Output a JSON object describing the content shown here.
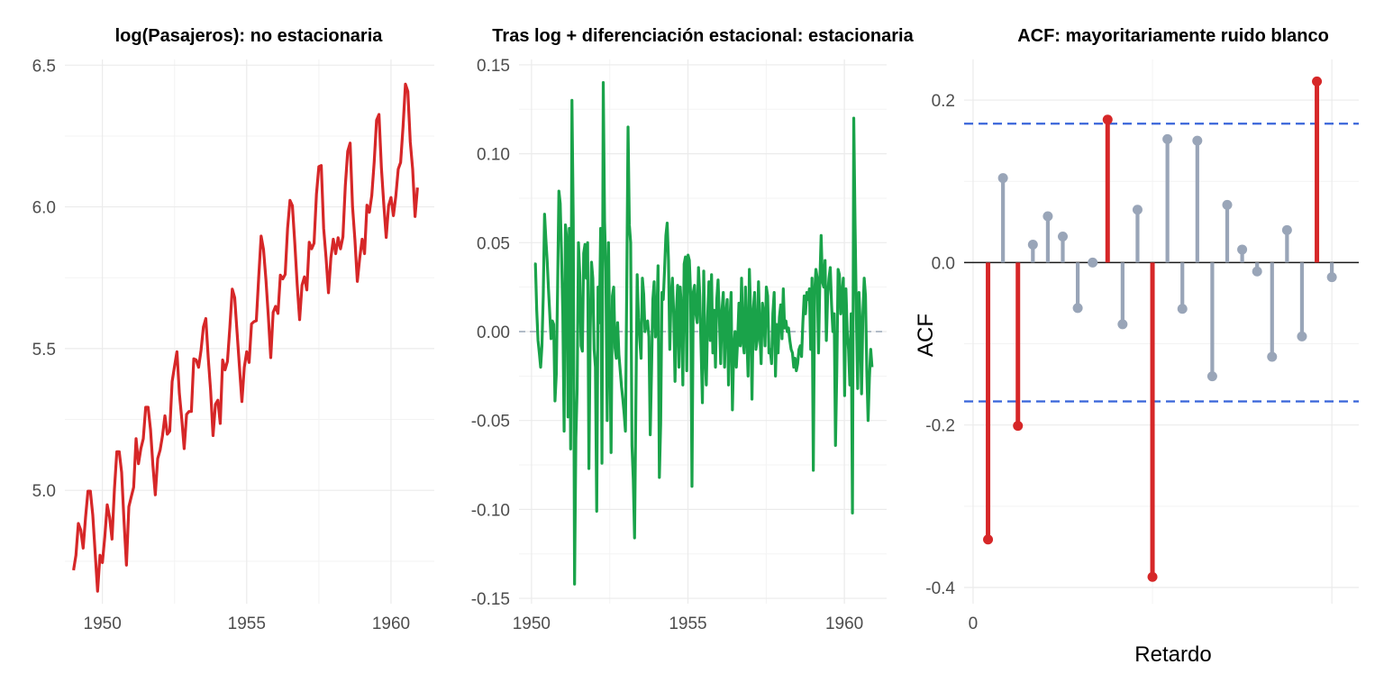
{
  "chart_data": [
    {
      "type": "line",
      "title": "log(Pasajeros): no estacionaria",
      "xlabel": "",
      "ylabel": "",
      "xlim": [
        1948.7,
        1961.5
      ],
      "ylim": [
        4.6,
        6.52
      ],
      "x_ticks": [
        1950,
        1955,
        1960
      ],
      "x_tick_labels": [
        "1950",
        "1955",
        "1960"
      ],
      "y_ticks": [
        5.0,
        5.5,
        6.0,
        6.5
      ],
      "y_tick_labels": [
        "5.0",
        "5.5",
        "6.0",
        "6.5"
      ],
      "grid": true,
      "series": [
        {
          "color": "#d62728",
          "start": 1949.0,
          "step": 0.0833333,
          "values": [
            4.718,
            4.771,
            4.883,
            4.86,
            4.796,
            4.905,
            4.997,
            4.997,
            4.913,
            4.779,
            4.644,
            4.771,
            4.745,
            4.836,
            4.949,
            4.905,
            4.828,
            5.004,
            5.136,
            5.136,
            5.063,
            4.89,
            4.736,
            4.942,
            4.977,
            5.011,
            5.182,
            5.094,
            5.147,
            5.182,
            5.293,
            5.293,
            5.215,
            5.088,
            4.984,
            5.112,
            5.142,
            5.193,
            5.263,
            5.198,
            5.209,
            5.384,
            5.438,
            5.489,
            5.342,
            5.252,
            5.147,
            5.268,
            5.278,
            5.278,
            5.464,
            5.46,
            5.434,
            5.493,
            5.576,
            5.606,
            5.468,
            5.352,
            5.193,
            5.303,
            5.318,
            5.236,
            5.46,
            5.425,
            5.455,
            5.576,
            5.71,
            5.68,
            5.557,
            5.434,
            5.313,
            5.434,
            5.489,
            5.451,
            5.587,
            5.595,
            5.598,
            5.753,
            5.897,
            5.849,
            5.743,
            5.613,
            5.468,
            5.628,
            5.649,
            5.624,
            5.759,
            5.746,
            5.762,
            5.924,
            6.023,
            6.004,
            5.872,
            5.724,
            5.602,
            5.724,
            5.753,
            5.707,
            5.875,
            5.852,
            5.872,
            6.045,
            6.142,
            6.146,
            5.924,
            5.82,
            5.697,
            5.82,
            5.886,
            5.835,
            5.891,
            5.852,
            5.894,
            6.075,
            6.196,
            6.225,
            6.001,
            5.883,
            5.737,
            5.82,
            5.886,
            5.835,
            6.006,
            5.981,
            6.04,
            6.157,
            6.306,
            6.326,
            6.138,
            6.009,
            5.892,
            6.004,
            6.033,
            5.969,
            6.038,
            6.133,
            6.157,
            6.282,
            6.433,
            6.407,
            6.23,
            6.133,
            5.966,
            6.068
          ]
        }
      ]
    },
    {
      "type": "line",
      "title": "Tras log + diferenciación estacional: estacionaria",
      "xlabel": "",
      "ylabel": "",
      "xlim": [
        1949.6,
        1961.35
      ],
      "ylim": [
        -0.153,
        0.153
      ],
      "x_ticks": [
        1950,
        1955,
        1960
      ],
      "x_tick_labels": [
        "1950",
        "1955",
        "1960"
      ],
      "y_ticks": [
        -0.15,
        -0.1,
        -0.05,
        0.0,
        0.05,
        0.1,
        0.15
      ],
      "y_tick_labels": [
        "-0.15",
        "-0.10",
        "-0.05",
        "0.00",
        "0.05",
        "0.10",
        "0.15"
      ],
      "grid": true,
      "reference_line": 0.0,
      "series": [
        {
          "color": "#1aa34a",
          "start": 1950.083,
          "step": 0.0417,
          "values": [
            0.038,
            0.038,
            0.012,
            -0.005,
            -0.012,
            -0.02,
            -0.008,
            0.02,
            0.066,
            0.052,
            0.04,
            0.024,
            0.01,
            -0.004,
            0.006,
            0.004,
            -0.039,
            -0.024,
            0.024,
            0.079,
            0.072,
            0.044,
            0.01,
            -0.056,
            0.06,
            0.052,
            -0.048,
            0.058,
            -0.066,
            0.13,
            0.062,
            -0.142,
            -0.06,
            -0.032,
            0.05,
            0.032,
            -0.008,
            -0.011,
            0.044,
            0.049,
            0.03,
            0.05,
            -0.077,
            0.0,
            0.039,
            0.03,
            -0.01,
            -0.02,
            -0.101,
            0.025,
            0.005,
            0.058,
            -0.074,
            0.14,
            0.062,
            0.034,
            -0.05,
            0.05,
            -0.006,
            -0.068,
            0.02,
            0.025,
            -0.009,
            -0.015,
            0.005,
            -0.013,
            -0.022,
            -0.031,
            -0.038,
            -0.046,
            -0.056,
            0.025,
            0.115,
            0.06,
            0.05,
            -0.064,
            -0.083,
            -0.116,
            -0.04,
            0.032,
            0.008,
            -0.005,
            -0.015,
            0.03,
            0.021,
            0.0,
            0.005,
            0.006,
            -0.003,
            -0.058,
            -0.022,
            0.018,
            0.028,
            -0.003,
            0.005,
            0.037,
            -0.082,
            -0.052,
            0.022,
            0.018,
            0.035,
            0.054,
            0.061,
            0.04,
            -0.01,
            0.02,
            0.03,
            0.01,
            -0.028,
            0.01,
            0.026,
            -0.02,
            0.025,
            0.012,
            -0.03,
            0.038,
            0.042,
            -0.022,
            0.043,
            0.04,
            0.02,
            -0.087,
            0.022,
            0.026,
            0.01,
            0.005,
            0.036,
            0.02,
            -0.01,
            -0.04,
            0.034,
            -0.012,
            -0.03,
            0.008,
            0.028,
            -0.005,
            0.032,
            -0.012,
            0.012,
            -0.02,
            0.018,
            0.029,
            0.008,
            -0.018,
            0.012,
            0.022,
            -0.02,
            0.01,
            0.018,
            -0.03,
            0.005,
            0.022,
            -0.044,
            -0.01,
            0.0,
            -0.02,
            -0.005,
            0.016,
            -0.008,
            0.03,
            -0.005,
            -0.012,
            0.025,
            -0.002,
            -0.025,
            0.035,
            0.01,
            -0.038,
            0.012,
            0.022,
            -0.01,
            -0.005,
            0.028,
            0.0,
            -0.018,
            0.016,
            0.01,
            -0.008,
            0.025,
            0.02,
            -0.012,
            -0.01,
            -0.018,
            0.01,
            0.022,
            -0.025,
            0.004,
            -0.012,
            0.008,
            0.015,
            -0.004,
            0.024,
            0.002,
            0.006,
            0.0,
            0.002,
            -0.005,
            -0.01,
            -0.012,
            -0.02,
            -0.015,
            -0.022,
            -0.018,
            -0.01,
            -0.008,
            -0.014,
            0.005,
            0.02,
            0.01,
            0.022,
            0.018,
            0.024,
            -0.01,
            0.03,
            -0.078,
            0.022,
            0.035,
            0.03,
            -0.012,
            0.028,
            0.054,
            0.028,
            0.025,
            0.04,
            -0.005,
            0.02,
            0.03,
            0.036,
            0.015,
            0.0,
            0.01,
            -0.064,
            -0.022,
            0.035,
            0.032,
            0.01,
            0.02,
            0.03,
            -0.036,
            0.024,
            0.0,
            -0.01,
            -0.03,
            0.01,
            -0.102,
            0.12,
            0.06,
            0.01,
            -0.032,
            0.022,
            0.004,
            -0.035,
            0.01,
            0.03,
            0.02,
            -0.022,
            -0.05,
            -0.026,
            -0.01,
            -0.02
          ]
        }
      ]
    },
    {
      "type": "bar",
      "subtype": "lollipop",
      "title": "ACF: mayoritariamente ruido blanco",
      "xlabel": "Retardo",
      "ylabel": "ACF",
      "xlim": [
        -0.6,
        25.8
      ],
      "ylim": [
        -0.42,
        0.25
      ],
      "x_ticks": [
        0
      ],
      "x_tick_labels": [
        "0"
      ],
      "y_ticks": [
        -0.4,
        -0.2,
        0.0,
        0.2
      ],
      "y_tick_labels": [
        "-0.4",
        "-0.2",
        "0.0",
        "0.2"
      ],
      "grid": true,
      "confidence_bound": 0.171,
      "significant_color": "#d62728",
      "other_color": "#99a5b8",
      "bound_color": "#3864d9",
      "lags": [
        1,
        2,
        3,
        4,
        5,
        6,
        7,
        8,
        9,
        10,
        11,
        12,
        13,
        14,
        15,
        16,
        17,
        18,
        19,
        20,
        21,
        22,
        23,
        24
      ],
      "values": [
        -0.341,
        0.104,
        -0.201,
        0.022,
        0.057,
        0.032,
        -0.056,
        0.0,
        0.176,
        -0.076,
        0.065,
        -0.387,
        0.152,
        -0.057,
        0.15,
        -0.14,
        0.071,
        0.016,
        -0.011,
        -0.116,
        0.04,
        -0.091,
        0.223,
        -0.018
      ]
    }
  ]
}
